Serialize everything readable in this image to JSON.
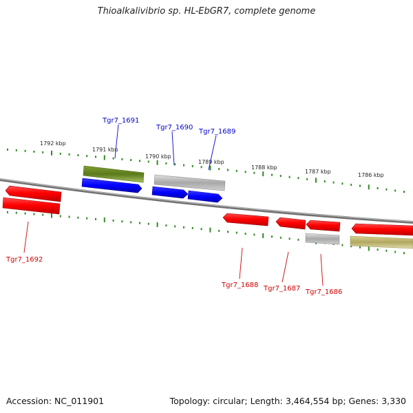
{
  "header": {
    "title": "Thioalkalivibrio sp. HL-EbGR7, complete genome"
  },
  "footer": {
    "accession": "Accession: NC_011901",
    "summary": "Topology: circular; Length: 3,464,554 bp; Genes: 3,330"
  },
  "ruler": {
    "unit": "kbp",
    "ticks": [
      {
        "label": "1792 kbp"
      },
      {
        "label": "1791 kbp"
      },
      {
        "label": "1790 kbp"
      },
      {
        "label": "1789 kbp"
      },
      {
        "label": "1788 kbp"
      },
      {
        "label": "1787 kbp"
      },
      {
        "label": "1786 kbp"
      }
    ]
  },
  "genes": [
    {
      "label": "Tgr7_1691",
      "strand": "forward",
      "color": "#0000cc"
    },
    {
      "label": "Tgr7_1690",
      "strand": "forward",
      "color": "#0000cc"
    },
    {
      "label": "Tgr7_1689",
      "strand": "forward",
      "color": "#0000cc"
    },
    {
      "label": "Tgr7_1692",
      "strand": "reverse",
      "color": "#cc0000"
    },
    {
      "label": "Tgr7_1688",
      "strand": "reverse",
      "color": "#cc0000"
    },
    {
      "label": "Tgr7_1687",
      "strand": "reverse",
      "color": "#cc0000"
    },
    {
      "label": "Tgr7_1686",
      "strand": "reverse",
      "color": "#cc0000"
    }
  ],
  "colors": {
    "forward_gene": "#0000ff",
    "reverse_gene": "#ff0000",
    "cog_green": "#6b8e23",
    "cog_grey": "#b0b0b0",
    "cog_khaki": "#bdb76b",
    "tick_green": "#2e8b20",
    "backbone": "#808080"
  }
}
